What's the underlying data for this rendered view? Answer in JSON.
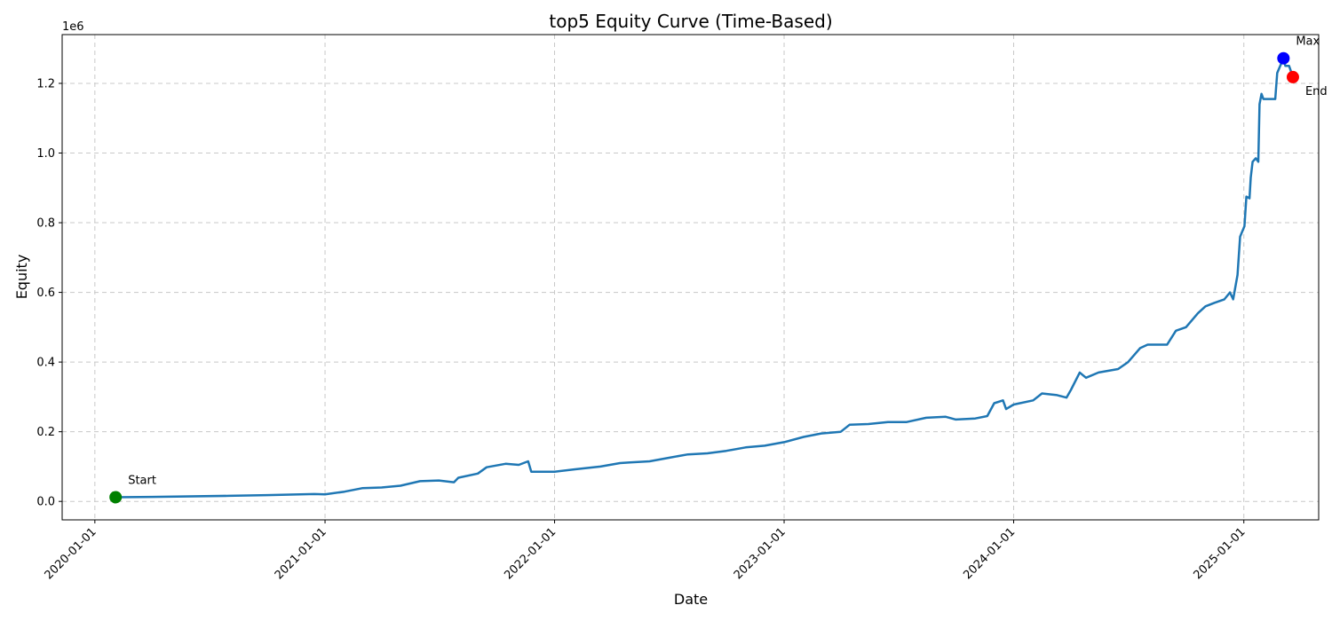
{
  "chart_data": {
    "type": "line",
    "title": "top5 Equity Curve (Time-Based)",
    "xlabel": "Date",
    "ylabel": "Equity",
    "y_scale_label": "1e6",
    "x_range": [
      "2019-11-10",
      "2025-04-30"
    ],
    "ylim": [
      -0.053,
      1.34
    ],
    "grid": true,
    "x_ticks": [
      "2020-01-01",
      "2021-01-01",
      "2022-01-01",
      "2023-01-01",
      "2024-01-01",
      "2025-01-01"
    ],
    "y_ticks": [
      0.0,
      0.2,
      0.4,
      0.6,
      0.8,
      1.0,
      1.2
    ],
    "y_tick_labels": [
      "0.0",
      "0.2",
      "0.4",
      "0.6",
      "0.8",
      "1.0",
      "1.2"
    ],
    "series": [
      {
        "color": "#1f77b4",
        "points": [
          [
            "2020-02-03",
            0.012
          ],
          [
            "2020-04-01",
            0.013
          ],
          [
            "2020-08-01",
            0.016
          ],
          [
            "2020-10-01",
            0.018
          ],
          [
            "2020-12-15",
            0.021
          ],
          [
            "2021-01-01",
            0.02
          ],
          [
            "2021-02-01",
            0.028
          ],
          [
            "2021-03-01",
            0.038
          ],
          [
            "2021-04-01",
            0.04
          ],
          [
            "2021-05-01",
            0.045
          ],
          [
            "2021-06-01",
            0.058
          ],
          [
            "2021-07-01",
            0.06
          ],
          [
            "2021-07-25",
            0.055
          ],
          [
            "2021-08-01",
            0.068
          ],
          [
            "2021-09-01",
            0.08
          ],
          [
            "2021-09-15",
            0.098
          ],
          [
            "2021-10-15",
            0.108
          ],
          [
            "2021-11-05",
            0.105
          ],
          [
            "2021-11-20",
            0.115
          ],
          [
            "2021-11-25",
            0.085
          ],
          [
            "2022-01-01",
            0.085
          ],
          [
            "2022-02-01",
            0.092
          ],
          [
            "2022-03-15",
            0.1
          ],
          [
            "2022-04-15",
            0.11
          ],
          [
            "2022-05-01",
            0.112
          ],
          [
            "2022-06-01",
            0.115
          ],
          [
            "2022-07-01",
            0.125
          ],
          [
            "2022-08-01",
            0.135
          ],
          [
            "2022-09-01",
            0.138
          ],
          [
            "2022-10-01",
            0.145
          ],
          [
            "2022-11-01",
            0.155
          ],
          [
            "2022-12-01",
            0.16
          ],
          [
            "2023-01-01",
            0.17
          ],
          [
            "2023-02-01",
            0.185
          ],
          [
            "2023-03-01",
            0.195
          ],
          [
            "2023-04-01",
            0.2
          ],
          [
            "2023-04-15",
            0.22
          ],
          [
            "2023-05-15",
            0.222
          ],
          [
            "2023-06-15",
            0.228
          ],
          [
            "2023-07-15",
            0.228
          ],
          [
            "2023-08-15",
            0.24
          ],
          [
            "2023-09-15",
            0.243
          ],
          [
            "2023-10-01",
            0.235
          ],
          [
            "2023-11-01",
            0.238
          ],
          [
            "2023-11-20",
            0.245
          ],
          [
            "2023-12-01",
            0.282
          ],
          [
            "2023-12-15",
            0.29
          ],
          [
            "2023-12-20",
            0.265
          ],
          [
            "2024-01-01",
            0.278
          ],
          [
            "2024-02-01",
            0.29
          ],
          [
            "2024-02-15",
            0.31
          ],
          [
            "2024-03-10",
            0.305
          ],
          [
            "2024-03-25",
            0.298
          ],
          [
            "2024-04-01",
            0.32
          ],
          [
            "2024-04-15",
            0.37
          ],
          [
            "2024-04-25",
            0.355
          ],
          [
            "2024-05-15",
            0.37
          ],
          [
            "2024-06-15",
            0.38
          ],
          [
            "2024-07-01",
            0.4
          ],
          [
            "2024-07-20",
            0.44
          ],
          [
            "2024-08-01",
            0.45
          ],
          [
            "2024-09-01",
            0.45
          ],
          [
            "2024-09-15",
            0.49
          ],
          [
            "2024-10-01",
            0.5
          ],
          [
            "2024-10-20",
            0.54
          ],
          [
            "2024-11-01",
            0.56
          ],
          [
            "2024-11-15",
            0.57
          ],
          [
            "2024-12-01",
            0.58
          ],
          [
            "2024-12-10",
            0.6
          ],
          [
            "2024-12-15",
            0.58
          ],
          [
            "2024-12-22",
            0.65
          ],
          [
            "2024-12-26",
            0.76
          ],
          [
            "2025-01-02",
            0.79
          ],
          [
            "2025-01-05",
            0.875
          ],
          [
            "2025-01-10",
            0.87
          ],
          [
            "2025-01-12",
            0.93
          ],
          [
            "2025-01-15",
            0.975
          ],
          [
            "2025-01-20",
            0.985
          ],
          [
            "2025-01-24",
            0.975
          ],
          [
            "2025-01-26",
            1.14
          ],
          [
            "2025-01-29",
            1.17
          ],
          [
            "2025-02-01",
            1.155
          ],
          [
            "2025-02-20",
            1.155
          ],
          [
            "2025-02-23",
            1.23
          ],
          [
            "2025-03-05",
            1.272
          ],
          [
            "2025-03-08",
            1.25
          ],
          [
            "2025-03-14",
            1.25
          ],
          [
            "2025-03-20",
            1.218
          ]
        ]
      }
    ],
    "markers": [
      {
        "label": "Start",
        "date": "2020-02-03",
        "value": 0.012,
        "color": "#008000"
      },
      {
        "label": "Max",
        "date": "2025-03-05",
        "value": 1.272,
        "color": "#0000ff"
      },
      {
        "label": "End",
        "date": "2025-03-20",
        "value": 1.218,
        "color": "#ff0000"
      }
    ]
  }
}
